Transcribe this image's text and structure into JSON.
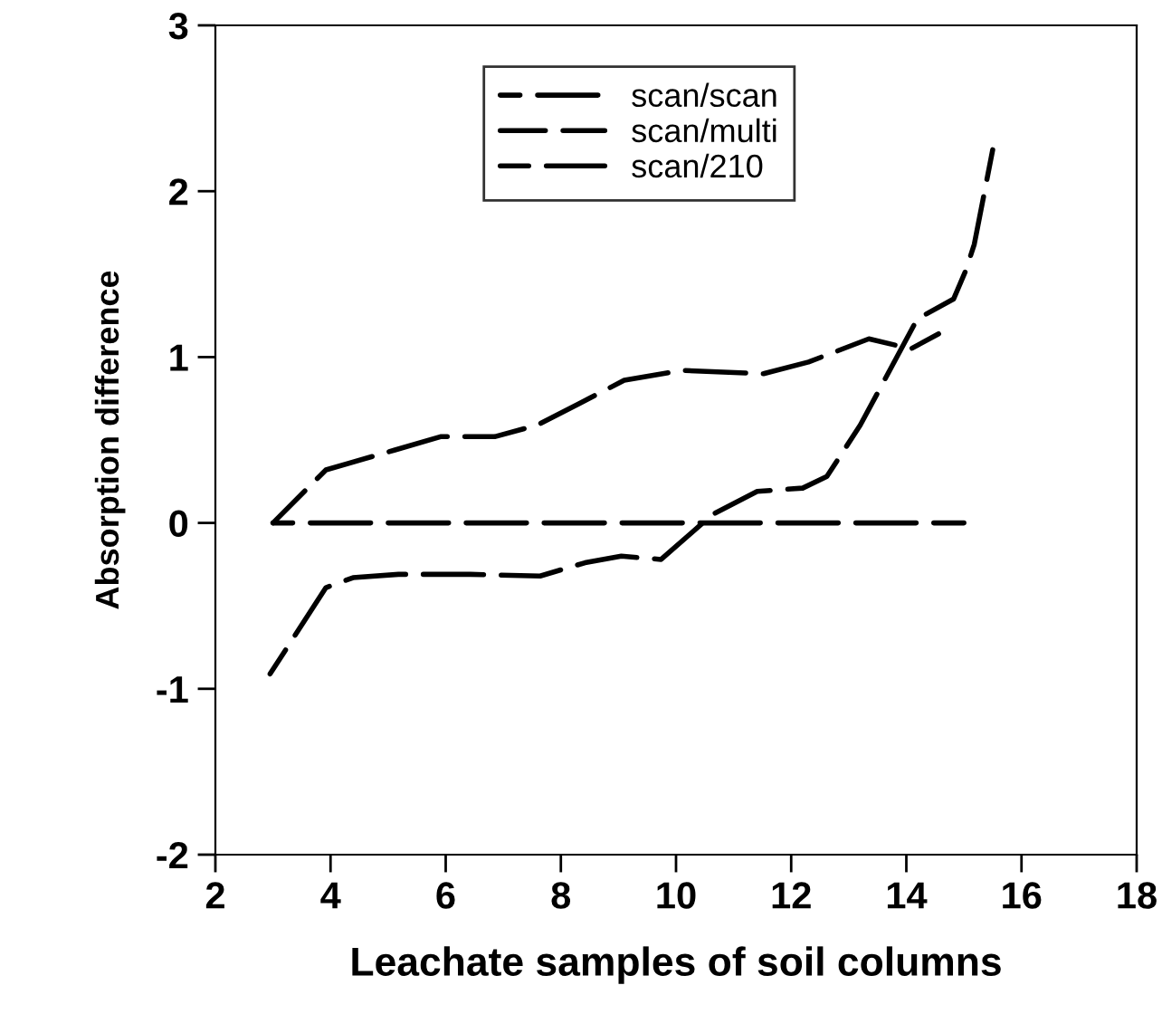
{
  "chart_data": {
    "type": "line",
    "xlabel": "Leachate samples of soil columns",
    "ylabel": "Absorption difference",
    "xlim": [
      2,
      18
    ],
    "xticks": [
      2,
      4,
      6,
      8,
      10,
      12,
      14,
      16,
      18
    ],
    "ylim": [
      -2,
      3
    ],
    "yticks": [
      -2,
      -1,
      0,
      1,
      2,
      3
    ],
    "grid": false,
    "legend": "top",
    "line_style": "dashed",
    "marker": "none",
    "series": [
      {
        "name": "scan/scan",
        "color": "#000000",
        "x": [
          3,
          15
        ],
        "values": [
          0,
          0
        ]
      },
      {
        "name": "scan/multi",
        "color": "#000000",
        "x": [
          3,
          3.92,
          5.12,
          5.91,
          6.85,
          7.59,
          8.32,
          9.1,
          10.1,
          11.52,
          12.3,
          13.35,
          14.08,
          14.56
        ],
        "values": [
          0,
          0.32,
          0.44,
          0.52,
          0.52,
          0.59,
          0.72,
          0.86,
          0.92,
          0.9,
          0.97,
          1.11,
          1.05,
          1.14
        ]
      },
      {
        "name": "scan/210",
        "color": "#000000",
        "x": [
          2.95,
          3.92,
          4.39,
          5.18,
          6.43,
          7.64,
          8.42,
          9.05,
          9.74,
          10.63,
          11.41,
          12.2,
          12.62,
          13.2,
          13.51,
          14.19,
          14.82,
          15.03,
          15.18,
          15.5
        ],
        "values": [
          -0.91,
          -0.39,
          -0.33,
          -0.31,
          -0.31,
          -0.32,
          -0.24,
          -0.2,
          -0.22,
          0.05,
          0.19,
          0.21,
          0.28,
          0.59,
          0.79,
          1.23,
          1.35,
          1.52,
          1.68,
          2.25
        ]
      }
    ]
  }
}
